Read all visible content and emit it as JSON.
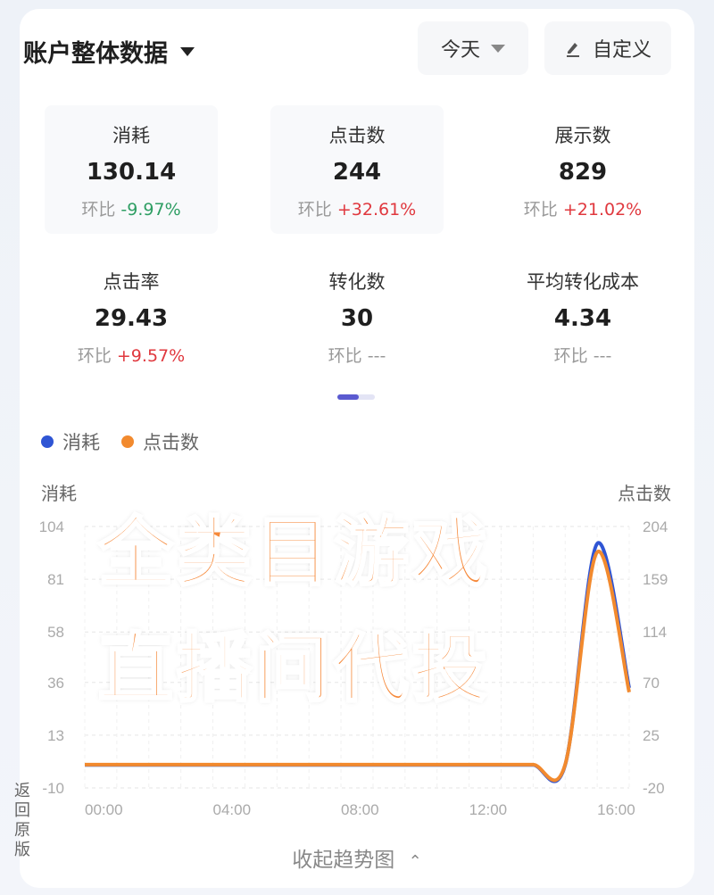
{
  "header": {
    "title": "账户整体数据",
    "date_select": "今天",
    "custom_label": "自定义",
    "icons": {
      "title": "caret-down-icon",
      "date": "caret-down-icon",
      "custom": "pencil-icon"
    }
  },
  "metrics": [
    {
      "label": "消耗",
      "value": "130.14",
      "change_label": "环比",
      "change": "-9.97%",
      "trend": "down"
    },
    {
      "label": "点击数",
      "value": "244",
      "change_label": "环比",
      "change": "+32.61%",
      "trend": "up"
    },
    {
      "label": "展示数",
      "value": "829",
      "change_label": "环比",
      "change": "+21.02%",
      "trend": "up"
    },
    {
      "label": "点击率",
      "value": "29.43",
      "change_label": "环比",
      "change": "+9.57%",
      "trend": "up"
    },
    {
      "label": "转化数",
      "value": "30",
      "change_label": "环比",
      "change": "---",
      "trend": "none"
    },
    {
      "label": "平均转化成本",
      "value": "4.34",
      "change_label": "环比",
      "change": "---",
      "trend": "none"
    }
  ],
  "pager": {
    "current": 1,
    "total": 2
  },
  "watermark": {
    "line1": "全类目游戏",
    "line2": "直播间代投"
  },
  "side_label": "返回原版",
  "collapse_label": "收起趋势图",
  "colors": {
    "spend": "#2f55d4",
    "clicks": "#f28a2e",
    "positive": "#e0383e",
    "negative": "#2e9e63",
    "watermark": "#f6893a"
  },
  "chart_data": {
    "type": "line",
    "legend": [
      "消耗",
      "点击数"
    ],
    "legend_position": "top-left",
    "x_ticks": [
      "00:00",
      "04:00",
      "08:00",
      "12:00",
      "16:00"
    ],
    "x_hours": [
      0,
      1,
      2,
      3,
      4,
      5,
      6,
      7,
      8,
      9,
      10,
      11,
      12,
      13,
      14,
      15,
      16,
      17
    ],
    "left_axis": {
      "label": "消耗",
      "ticks": [
        104,
        81,
        58,
        36,
        13,
        -10
      ],
      "range": [
        -10,
        104
      ]
    },
    "right_axis": {
      "label": "点击数",
      "ticks": [
        204,
        159,
        114,
        70,
        25,
        -20
      ],
      "range": [
        -20,
        204
      ]
    },
    "grid": true,
    "series": [
      {
        "name": "消耗",
        "axis": "left",
        "values": [
          0,
          0,
          0,
          0,
          0,
          0,
          0,
          0,
          0,
          0,
          0,
          0,
          0,
          0,
          0,
          0,
          96.5,
          33.6
        ]
      },
      {
        "name": "点击数",
        "axis": "right",
        "values": [
          0,
          0,
          0,
          0,
          0,
          0,
          0,
          0,
          0,
          0,
          0,
          0,
          0,
          0,
          0,
          0,
          182,
          62
        ]
      }
    ]
  }
}
